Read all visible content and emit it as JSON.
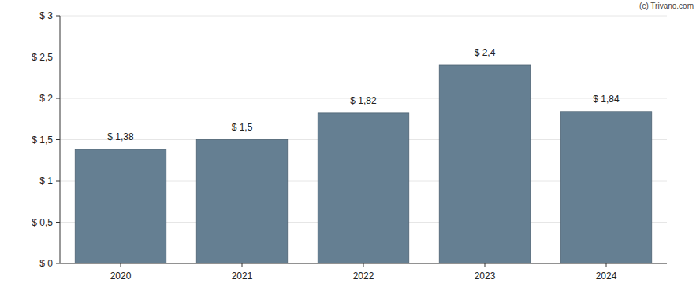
{
  "chart_data": {
    "type": "bar",
    "annotations": [
      "(c) Trivano.com"
    ],
    "categories": [
      "2020",
      "2021",
      "2022",
      "2023",
      "2024"
    ],
    "values": [
      1.38,
      1.5,
      1.82,
      2.4,
      1.84
    ],
    "value_labels": [
      "$ 1,38",
      "$ 1,5",
      "$ 1,82",
      "$ 2,4",
      "$ 1,84"
    ],
    "data_labels": true,
    "color": "#657f92",
    "ylim": [
      0,
      3
    ],
    "yticks": [
      {
        "value": 0,
        "label": "$ 0"
      },
      {
        "value": 0.5,
        "label": "$ 0,5"
      },
      {
        "value": 1,
        "label": "$ 1"
      },
      {
        "value": 1.5,
        "label": "$ 1,5"
      },
      {
        "value": 2,
        "label": "$ 2"
      },
      {
        "value": 2.5,
        "label": "$ 2,5"
      },
      {
        "value": 3,
        "label": "$ 3"
      }
    ],
    "grid": true
  }
}
